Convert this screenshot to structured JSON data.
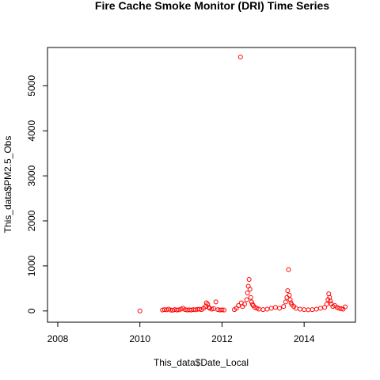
{
  "chart_data": {
    "type": "scatter",
    "title": "Fire Cache Smoke Monitor (DRI) Time Series",
    "xlabel": "This_data$Date_Local",
    "ylabel": "This_data$PM2.5_Obs",
    "xlim": [
      2007.75,
      2015.25
    ],
    "ylim": [
      -250,
      5850
    ],
    "x_ticks": [
      2008,
      2010,
      2012,
      2014
    ],
    "x_tick_labels": [
      "2008",
      "2010",
      "2012",
      "2014"
    ],
    "y_ticks": [
      0,
      1000,
      2000,
      3000,
      4000,
      5000
    ],
    "y_tick_labels": [
      "0",
      "1000",
      "2000",
      "3000",
      "4000",
      "5000"
    ],
    "point_color": "#ff0000",
    "marker": "open-circle",
    "grid": false,
    "series": [
      {
        "x": [
          2010.0,
          2010.55,
          2010.6,
          2010.65,
          2010.7,
          2010.75,
          2010.8,
          2010.85,
          2010.9,
          2010.95,
          2011.0,
          2011.05,
          2011.1,
          2011.15,
          2011.2,
          2011.25,
          2011.3,
          2011.35,
          2011.4,
          2011.45,
          2011.5,
          2011.55,
          2011.6,
          2011.62,
          2011.65,
          2011.68,
          2011.7,
          2011.75,
          2011.8,
          2011.85,
          2011.9,
          2011.95,
          2012.0,
          2012.05,
          2012.3,
          2012.35,
          2012.4,
          2012.45,
          2012.47,
          2012.5,
          2012.55,
          2012.6,
          2012.62,
          2012.64,
          2012.66,
          2012.68,
          2012.7,
          2012.72,
          2012.74,
          2012.76,
          2012.8,
          2012.85,
          2012.9,
          2013.0,
          2013.1,
          2013.2,
          2013.3,
          2013.4,
          2013.5,
          2013.55,
          2013.58,
          2013.6,
          2013.62,
          2013.64,
          2013.66,
          2013.68,
          2013.7,
          2013.75,
          2013.8,
          2013.9,
          2014.0,
          2014.1,
          2014.2,
          2014.3,
          2014.4,
          2014.5,
          2014.55,
          2014.58,
          2014.6,
          2014.62,
          2014.64,
          2014.66,
          2014.7,
          2014.75,
          2014.8,
          2014.85,
          2014.9,
          2014.95,
          2015.0
        ],
        "y": [
          0,
          20,
          30,
          25,
          40,
          20,
          15,
          30,
          20,
          25,
          40,
          60,
          30,
          20,
          25,
          20,
          30,
          25,
          35,
          40,
          30,
          60,
          100,
          180,
          150,
          80,
          60,
          40,
          50,
          200,
          30,
          20,
          25,
          20,
          30,
          60,
          120,
          5640,
          180,
          100,
          150,
          250,
          400,
          550,
          700,
          480,
          300,
          200,
          150,
          120,
          80,
          60,
          40,
          30,
          40,
          60,
          80,
          60,
          100,
          200,
          300,
          450,
          920,
          350,
          250,
          180,
          140,
          100,
          60,
          40,
          30,
          25,
          30,
          40,
          60,
          80,
          150,
          250,
          380,
          300,
          220,
          160,
          100,
          120,
          80,
          60,
          50,
          40,
          90
        ]
      }
    ]
  }
}
